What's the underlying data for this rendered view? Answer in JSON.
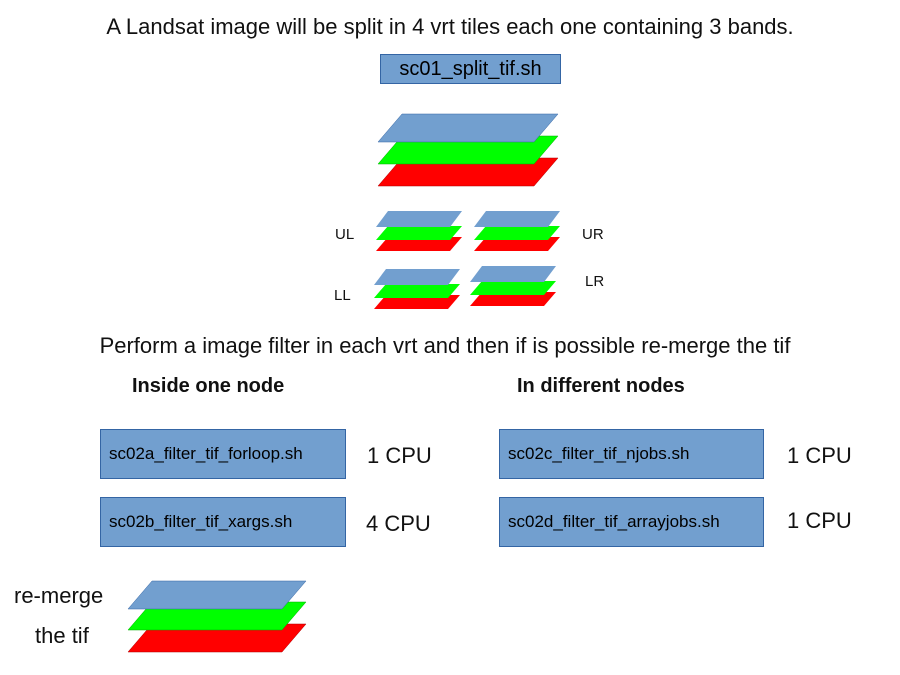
{
  "intro": "A Landsat image will be split in 4 vrt tiles each one containing 3 bands.",
  "split_script": "sc01_split_tif.sh",
  "tiles": {
    "ul": "UL",
    "ur": "UR",
    "ll": "LL",
    "lr": "LR"
  },
  "filter_heading": "Perform a image filter in each vrt and then if is possible re-merge the tif",
  "inside": {
    "heading": "Inside one node",
    "rows": [
      {
        "script": "sc02a_filter_tif_forloop.sh",
        "cpu": "1 CPU"
      },
      {
        "script": "sc02b_filter_tif_xargs.sh",
        "cpu": "4 CPU"
      }
    ]
  },
  "different": {
    "heading": "In different nodes",
    "rows": [
      {
        "script": "sc02c_filter_tif_njobs.sh",
        "cpu": "1 CPU"
      },
      {
        "script": "sc02d_filter_tif_arrayjobs.sh",
        "cpu": "1 CPU"
      }
    ]
  },
  "remerge": {
    "line1": "re-merge",
    "line2": "the tif"
  },
  "colors": {
    "band_blue": "#729fcf",
    "band_green": "#00ff00",
    "band_red": "#ff0000",
    "box_fill": "#729fcf",
    "box_border": "#3465a4"
  }
}
